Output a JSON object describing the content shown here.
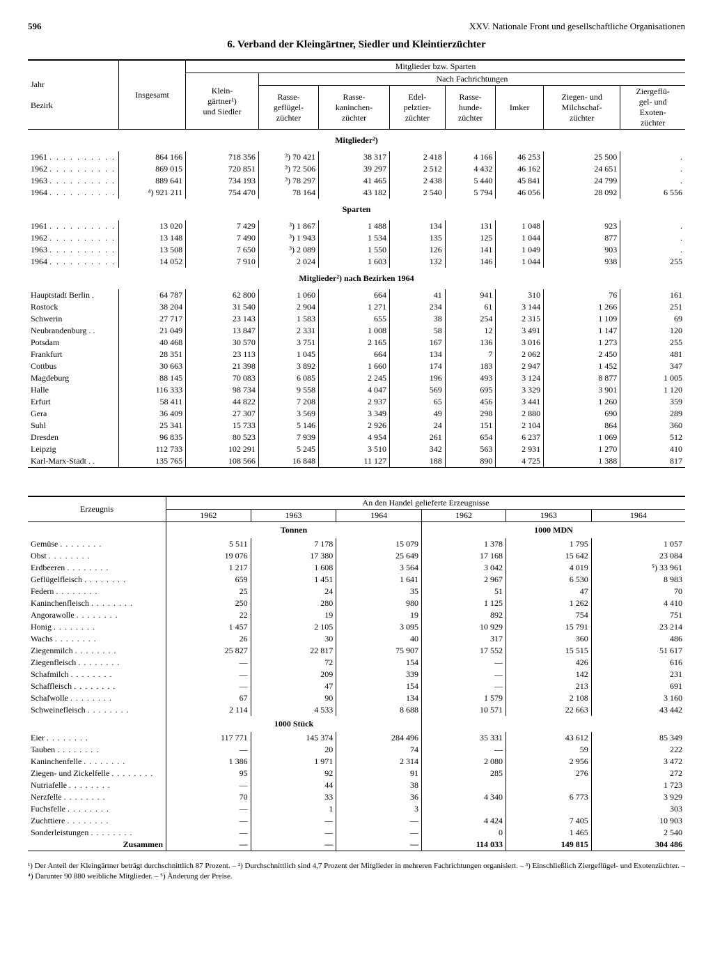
{
  "page_number": "596",
  "chapter_header": "XXV. Nationale Front und gesellschaftliche Organisationen",
  "title": "6. Verband der Kleingärtner, Siedler und Kleintierzüchter",
  "t1": {
    "h_jahr": "Jahr",
    "h_bezirk": "Bezirk",
    "h_insg": "Insgesamt",
    "h_mitgl": "Mitglieder bzw. Sparten",
    "h_fach": "Nach Fachrichtungen",
    "cols": [
      "Klein-\ngärtner¹)\nund Siedler",
      "Rasse-\ngeflügel-\nzüchter",
      "Rasse-\nkaninchen-\nzüchter",
      "Edel-\npelztier-\nzüchter",
      "Rasse-\nhunde-\nzüchter",
      "Imker",
      "Ziegen- und\nMilchschaf-\nzüchter",
      "Ziergeflü-\ngel- und\nExoten-\nzüchter"
    ],
    "sec_mitglieder": "Mitglieder²)",
    "mitglieder": [
      [
        "1961",
        "864 166",
        "718 356",
        "³) 70 421",
        "38 317",
        "2 418",
        "4 166",
        "46 253",
        "25 500",
        "."
      ],
      [
        "1962",
        "869 015",
        "720 851",
        "³) 72 506",
        "39 297",
        "2 512",
        "4 432",
        "46 162",
        "24 651",
        "."
      ],
      [
        "1963",
        "889 641",
        "734 193",
        "³) 78 297",
        "41 465",
        "2 438",
        "5 440",
        "45 841",
        "24 799",
        "."
      ],
      [
        "1964",
        "⁴) 921 211",
        "754 470",
        "78 164",
        "43 182",
        "2 540",
        "5 794",
        "46 056",
        "28 092",
        "6 556"
      ]
    ],
    "sec_sparten": "Sparten",
    "sparten": [
      [
        "1961",
        "13 020",
        "7 429",
        "³)  1 867",
        "1 488",
        "134",
        "131",
        "1 048",
        "923",
        "."
      ],
      [
        "1962",
        "13 148",
        "7 490",
        "³)  1 943",
        "1 534",
        "135",
        "125",
        "1 044",
        "877",
        "."
      ],
      [
        "1963",
        "13 508",
        "7 650",
        "³)  2 089",
        "1 550",
        "126",
        "141",
        "1 049",
        "903",
        "."
      ],
      [
        "1964",
        "14 052",
        "7 910",
        "2 024",
        "1 603",
        "132",
        "146",
        "1 044",
        "938",
        "255"
      ]
    ],
    "sec_bezirke": "Mitglieder²) nach Bezirken 1964",
    "bezirke": [
      [
        "Hauptstadt Berlin .",
        "64 787",
        "62 800",
        "1 060",
        "664",
        "41",
        "941",
        "310",
        "76",
        "161"
      ],
      [
        "Rostock",
        "38 204",
        "31 540",
        "2 904",
        "1 271",
        "234",
        "61",
        "3 144",
        "1 266",
        "251"
      ],
      [
        "Schwerin",
        "27 717",
        "23 143",
        "1 583",
        "655",
        "38",
        "254",
        "2 315",
        "1 109",
        "69"
      ],
      [
        "Neubrandenburg . .",
        "21 049",
        "13 847",
        "2 331",
        "1 008",
        "58",
        "12",
        "3 491",
        "1 147",
        "120"
      ],
      [
        "Potsdam",
        "40 468",
        "30 570",
        "3 751",
        "2 165",
        "167",
        "136",
        "3 016",
        "1 273",
        "255"
      ],
      [
        "Frankfurt",
        "28 351",
        "23 113",
        "1 045",
        "664",
        "134",
        "7",
        "2 062",
        "2 450",
        "481"
      ],
      [
        "Cottbus",
        "30 663",
        "21 398",
        "3 892",
        "1 660",
        "174",
        "183",
        "2 947",
        "1 452",
        "347"
      ],
      [
        "Magdeburg",
        "88 145",
        "70 083",
        "6 085",
        "2 245",
        "196",
        "493",
        "3 124",
        "8 877",
        "1 005"
      ],
      [
        "Halle",
        "116 333",
        "98 734",
        "9 558",
        "4 047",
        "569",
        "695",
        "3 329",
        "3 901",
        "1 120"
      ],
      [
        "Erfurt",
        "58 411",
        "44 822",
        "7 208",
        "2 937",
        "65",
        "456",
        "3 441",
        "1 260",
        "359"
      ],
      [
        "Gera",
        "36 409",
        "27 307",
        "3 569",
        "3 349",
        "49",
        "298",
        "2 880",
        "690",
        "289"
      ],
      [
        "Suhl",
        "25 341",
        "15 733",
        "5 146",
        "2 926",
        "24",
        "151",
        "2 104",
        "864",
        "360"
      ],
      [
        "Dresden",
        "96 835",
        "80 523",
        "7 939",
        "4 954",
        "261",
        "654",
        "6 237",
        "1 069",
        "512"
      ],
      [
        "Leipzig",
        "112 733",
        "102 291",
        "5 245",
        "3 510",
        "342",
        "563",
        "2 931",
        "1 270",
        "410"
      ],
      [
        "Karl-Marx-Stadt . .",
        "135 765",
        "108 566",
        "16 848",
        "11 127",
        "188",
        "890",
        "4 725",
        "1 388",
        "817"
      ]
    ]
  },
  "t2": {
    "h_erz": "Erzeugnis",
    "h_handel": "An den Handel gelieferte Erzeugnisse",
    "years": [
      "1962",
      "1963",
      "1964",
      "1962",
      "1963",
      "1964"
    ],
    "unit_tonnen": "Tonnen",
    "unit_mdn": "1000 MDN",
    "rows_tonnen": [
      [
        "Gemüse",
        "5 511",
        "7 178",
        "15 079",
        "1 378",
        "1 795",
        "1 057"
      ],
      [
        "Obst",
        "19 076",
        "17 380",
        "25 649",
        "17 168",
        "15 642",
        "23 084"
      ],
      [
        "Erdbeeren",
        "1 217",
        "1 608",
        "3 564",
        "3 042",
        "4 019",
        "⁵) 33 961"
      ],
      [
        "Geflügelfleisch",
        "659",
        "1 451",
        "1 641",
        "2 967",
        "6 530",
        "8 983"
      ],
      [
        "Federn",
        "25",
        "24",
        "35",
        "51",
        "47",
        "70"
      ],
      [
        "Kaninchenfleisch",
        "250",
        "280",
        "980",
        "1 125",
        "1 262",
        "4 410"
      ],
      [
        "Angorawolle",
        "22",
        "19",
        "19",
        "892",
        "754",
        "751"
      ],
      [
        "Honig",
        "1 457",
        "2 105",
        "3 095",
        "10 929",
        "15 791",
        "23 214"
      ],
      [
        "Wachs",
        "26",
        "30",
        "40",
        "317",
        "360",
        "486"
      ],
      [
        "Ziegenmilch",
        "25 827",
        "22 817",
        "75 907",
        "17 552",
        "15 515",
        "51 617"
      ],
      [
        "Ziegenfleisch",
        "—",
        "72",
        "154",
        "—",
        "426",
        "616"
      ],
      [
        "Schafmilch",
        "—",
        "209",
        "339",
        "—",
        "142",
        "231"
      ],
      [
        "Schaffleisch",
        "—",
        "47",
        "154",
        "—",
        "213",
        "691"
      ],
      [
        "Schafwolle",
        "67",
        "90",
        "134",
        "1 579",
        "2 108",
        "3 160"
      ],
      [
        "Schweinefleisch",
        "2 114",
        "4 533",
        "8 688",
        "10 571",
        "22 663",
        "43 442"
      ]
    ],
    "unit_stueck": "1000 Stück",
    "rows_stueck": [
      [
        "Eier",
        "117 771",
        "145 374",
        "284 496",
        "35 331",
        "43 612",
        "85 349"
      ],
      [
        "Tauben",
        "—",
        "20",
        "74",
        "—",
        "59",
        "222"
      ],
      [
        "Kaninchenfelle",
        "1 386",
        "1 971",
        "2 314",
        "2 080",
        "2 956",
        "3 472"
      ],
      [
        "Ziegen- und Zickelfelle",
        "95",
        "92",
        "91",
        "285",
        "276",
        "272"
      ],
      [
        "Nutriafelle",
        "—",
        "44",
        "38",
        "",
        "",
        "1 723"
      ],
      [
        "Nerzfelle",
        "70",
        "33",
        "36",
        "4 340",
        "6 773",
        "3 929"
      ],
      [
        "Fuchsfelle",
        "—",
        "1",
        "3",
        "",
        "",
        "303"
      ],
      [
        "Zuchttiere",
        "—",
        "—",
        "—",
        "4 424",
        "7 405",
        "10 903"
      ],
      [
        "Sonderleistungen",
        "—",
        "—",
        "—",
        "0",
        "1 465",
        "2 540"
      ]
    ],
    "zusammen_label": "Zusammen",
    "zusammen": [
      "—",
      "—",
      "—",
      "114 033",
      "149 815",
      "304 486"
    ]
  },
  "footnotes": "¹) Der Anteil der Kleingärtner beträgt durchschnittlich 87 Prozent. – ²) Durchschnittlich sind 4,7 Prozent der Mitglieder in mehreren Fachrichtungen organisiert. – ³) Einschließlich Ziergeflügel- und Exotenzüchter. – ⁴) Darunter 90 880 weibliche Mitglieder. – ⁵) Änderung der Preise."
}
